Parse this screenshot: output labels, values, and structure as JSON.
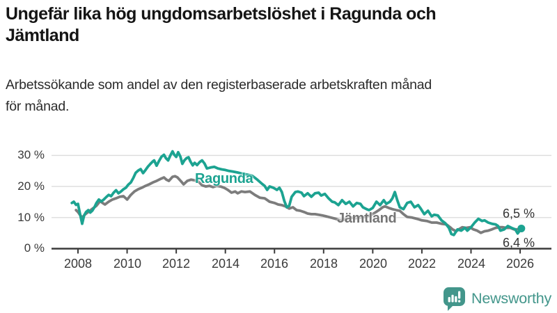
{
  "header": {
    "title_lines": [
      "Ungefär lika hög ungdomsarbetslöshet i Ragunda och",
      "Jämtland"
    ],
    "subtitle_lines": [
      "Arbetssökande som andel av den registerbaserade arbetskraften månad",
      "för månad."
    ]
  },
  "chart_data": {
    "type": "line",
    "title": "Ungefär lika hög ungdomsarbetslöshet i Ragunda och Jämtland",
    "subtitle": "Arbetssökande som andel av den registerbaserade arbetskraften månad för månad.",
    "unit": "%",
    "grid": true,
    "legend_position": "inline-labels",
    "x_axis": {
      "ticks": [
        "2008",
        "2010",
        "2012",
        "2014",
        "2016",
        "2018",
        "2020",
        "2022",
        "2024",
        "2026"
      ],
      "range": [
        2007.7,
        2026.3
      ]
    },
    "y_axis": {
      "ticks_top_down": [
        "30 %",
        "20 %",
        "10 %",
        "0 %"
      ],
      "tick_values": [
        30,
        20,
        10,
        0
      ],
      "range": [
        0,
        32
      ]
    },
    "series": [
      {
        "name": "Ragunda",
        "color": "#1CA391",
        "end_label": "6,5 %",
        "end_value": 6.5,
        "points": [
          [
            2007.75,
            14.7
          ],
          [
            2007.83,
            15.1
          ],
          [
            2007.92,
            14.1
          ],
          [
            2008.0,
            14.4
          ],
          [
            2008.08,
            11.3
          ],
          [
            2008.17,
            8.0
          ],
          [
            2008.25,
            10.7
          ],
          [
            2008.33,
            11.8
          ],
          [
            2008.42,
            12.4
          ],
          [
            2008.5,
            11.6
          ],
          [
            2008.58,
            12.2
          ],
          [
            2008.67,
            13.3
          ],
          [
            2008.75,
            14.7
          ],
          [
            2008.85,
            15.8
          ],
          [
            2008.95,
            15.2
          ],
          [
            2009.05,
            15.8
          ],
          [
            2009.15,
            16.6
          ],
          [
            2009.25,
            17.3
          ],
          [
            2009.35,
            16.9
          ],
          [
            2009.45,
            18.0
          ],
          [
            2009.55,
            18.8
          ],
          [
            2009.65,
            17.8
          ],
          [
            2009.75,
            18.4
          ],
          [
            2009.85,
            19.1
          ],
          [
            2009.95,
            19.6
          ],
          [
            2010.05,
            20.6
          ],
          [
            2010.15,
            21.3
          ],
          [
            2010.25,
            22.7
          ],
          [
            2010.35,
            24.4
          ],
          [
            2010.45,
            25.1
          ],
          [
            2010.55,
            25.6
          ],
          [
            2010.65,
            24.3
          ],
          [
            2010.75,
            25.3
          ],
          [
            2010.85,
            26.4
          ],
          [
            2010.95,
            27.3
          ],
          [
            2011.05,
            28.1
          ],
          [
            2011.1,
            28.4
          ],
          [
            2011.2,
            26.7
          ],
          [
            2011.3,
            28.2
          ],
          [
            2011.4,
            29.6
          ],
          [
            2011.5,
            30.2
          ],
          [
            2011.58,
            29.1
          ],
          [
            2011.67,
            28.4
          ],
          [
            2011.75,
            29.8
          ],
          [
            2011.85,
            31.3
          ],
          [
            2011.92,
            30.2
          ],
          [
            2012.0,
            29.5
          ],
          [
            2012.08,
            31.0
          ],
          [
            2012.17,
            29.6
          ],
          [
            2012.25,
            27.3
          ],
          [
            2012.33,
            28.4
          ],
          [
            2012.42,
            29.1
          ],
          [
            2012.5,
            29.4
          ],
          [
            2012.58,
            28.0
          ],
          [
            2012.67,
            26.8
          ],
          [
            2012.75,
            27.6
          ],
          [
            2012.85,
            26.9
          ],
          [
            2012.95,
            27.8
          ],
          [
            2013.05,
            28.4
          ],
          [
            2013.15,
            27.4
          ],
          [
            2013.25,
            25.8
          ],
          [
            2013.4,
            26.1
          ],
          [
            2013.55,
            26.3
          ],
          [
            2013.7,
            25.8
          ],
          [
            2013.85,
            25.5
          ],
          [
            2014.0,
            25.3
          ],
          [
            2014.15,
            25.0
          ],
          [
            2014.3,
            24.8
          ],
          [
            2014.5,
            24.5
          ],
          [
            2014.7,
            24.1
          ],
          [
            2014.9,
            23.8
          ],
          [
            2015.1,
            23.4
          ],
          [
            2015.3,
            22.2
          ],
          [
            2015.5,
            20.8
          ],
          [
            2015.6,
            20.2
          ],
          [
            2015.7,
            18.9
          ],
          [
            2015.8,
            20.0
          ],
          [
            2015.95,
            19.6
          ],
          [
            2016.1,
            18.9
          ],
          [
            2016.2,
            19.6
          ],
          [
            2016.3,
            18.2
          ],
          [
            2016.4,
            15.3
          ],
          [
            2016.5,
            13.3
          ],
          [
            2016.6,
            13.8
          ],
          [
            2016.7,
            16.7
          ],
          [
            2016.85,
            18.2
          ],
          [
            2016.95,
            18.4
          ],
          [
            2017.1,
            18.0
          ],
          [
            2017.2,
            16.9
          ],
          [
            2017.35,
            17.8
          ],
          [
            2017.5,
            16.7
          ],
          [
            2017.65,
            17.8
          ],
          [
            2017.8,
            18.0
          ],
          [
            2017.9,
            17.1
          ],
          [
            2018.05,
            17.6
          ],
          [
            2018.2,
            16.2
          ],
          [
            2018.35,
            15.1
          ],
          [
            2018.45,
            14.9
          ],
          [
            2018.6,
            14.0
          ],
          [
            2018.75,
            15.6
          ],
          [
            2018.9,
            14.4
          ],
          [
            2019.05,
            15.1
          ],
          [
            2019.2,
            13.6
          ],
          [
            2019.35,
            14.7
          ],
          [
            2019.5,
            14.4
          ],
          [
            2019.6,
            13.3
          ],
          [
            2019.75,
            12.7
          ],
          [
            2019.85,
            12.4
          ],
          [
            2020.0,
            13.1
          ],
          [
            2020.15,
            15.1
          ],
          [
            2020.3,
            14.0
          ],
          [
            2020.45,
            15.6
          ],
          [
            2020.55,
            14.4
          ],
          [
            2020.7,
            15.1
          ],
          [
            2020.8,
            16.2
          ],
          [
            2020.9,
            18.2
          ],
          [
            2021.0,
            15.6
          ],
          [
            2021.1,
            13.3
          ],
          [
            2021.25,
            12.7
          ],
          [
            2021.4,
            14.7
          ],
          [
            2021.55,
            15.1
          ],
          [
            2021.7,
            13.3
          ],
          [
            2021.85,
            14.0
          ],
          [
            2021.95,
            12.9
          ],
          [
            2022.1,
            11.1
          ],
          [
            2022.25,
            12.2
          ],
          [
            2022.4,
            10.4
          ],
          [
            2022.5,
            10.9
          ],
          [
            2022.65,
            10.7
          ],
          [
            2022.8,
            9.1
          ],
          [
            2022.95,
            8.2
          ],
          [
            2023.1,
            6.7
          ],
          [
            2023.2,
            4.7
          ],
          [
            2023.3,
            4.4
          ],
          [
            2023.45,
            6.2
          ],
          [
            2023.6,
            5.8
          ],
          [
            2023.75,
            6.7
          ],
          [
            2023.85,
            5.8
          ],
          [
            2024.0,
            6.9
          ],
          [
            2024.15,
            8.4
          ],
          [
            2024.3,
            9.6
          ],
          [
            2024.45,
            8.9
          ],
          [
            2024.55,
            9.1
          ],
          [
            2024.7,
            8.4
          ],
          [
            2024.85,
            8.0
          ],
          [
            2025.0,
            7.8
          ],
          [
            2025.1,
            7.3
          ],
          [
            2025.2,
            5.8
          ],
          [
            2025.35,
            6.2
          ],
          [
            2025.5,
            7.3
          ],
          [
            2025.65,
            6.7
          ],
          [
            2025.8,
            6.2
          ],
          [
            2025.9,
            4.9
          ],
          [
            2026.05,
            6.5
          ]
        ]
      },
      {
        "name": "Jämtland",
        "color": "#7C7C7C",
        "end_label": "6,4 %",
        "end_value": 6.4,
        "points": [
          [
            2007.92,
            12.4
          ],
          [
            2008.0,
            11.8
          ],
          [
            2008.08,
            10.9
          ],
          [
            2008.17,
            10.0
          ],
          [
            2008.3,
            11.1
          ],
          [
            2008.45,
            12.0
          ],
          [
            2008.6,
            12.9
          ],
          [
            2008.75,
            13.8
          ],
          [
            2008.9,
            15.3
          ],
          [
            2009.0,
            14.7
          ],
          [
            2009.1,
            14.2
          ],
          [
            2009.25,
            15.1
          ],
          [
            2009.4,
            15.8
          ],
          [
            2009.55,
            16.2
          ],
          [
            2009.7,
            16.7
          ],
          [
            2009.85,
            16.9
          ],
          [
            2010.0,
            15.8
          ],
          [
            2010.15,
            17.3
          ],
          [
            2010.3,
            18.4
          ],
          [
            2010.45,
            19.1
          ],
          [
            2010.6,
            19.6
          ],
          [
            2010.75,
            20.2
          ],
          [
            2010.9,
            20.7
          ],
          [
            2011.05,
            21.3
          ],
          [
            2011.2,
            21.8
          ],
          [
            2011.35,
            22.4
          ],
          [
            2011.5,
            22.9
          ],
          [
            2011.6,
            22.2
          ],
          [
            2011.7,
            21.8
          ],
          [
            2011.85,
            23.1
          ],
          [
            2011.95,
            23.3
          ],
          [
            2012.05,
            22.9
          ],
          [
            2012.2,
            21.6
          ],
          [
            2012.3,
            20.7
          ],
          [
            2012.45,
            21.8
          ],
          [
            2012.6,
            22.2
          ],
          [
            2012.75,
            22.0
          ],
          [
            2012.9,
            21.6
          ],
          [
            2013.05,
            20.4
          ],
          [
            2013.2,
            20.0
          ],
          [
            2013.35,
            20.2
          ],
          [
            2013.5,
            19.8
          ],
          [
            2013.65,
            20.2
          ],
          [
            2013.8,
            20.0
          ],
          [
            2013.95,
            19.6
          ],
          [
            2014.1,
            18.9
          ],
          [
            2014.25,
            18.0
          ],
          [
            2014.4,
            18.4
          ],
          [
            2014.5,
            17.8
          ],
          [
            2014.65,
            18.4
          ],
          [
            2014.8,
            18.2
          ],
          [
            2015.0,
            18.4
          ],
          [
            2015.2,
            17.3
          ],
          [
            2015.4,
            16.4
          ],
          [
            2015.6,
            16.2
          ],
          [
            2015.8,
            15.1
          ],
          [
            2016.0,
            14.7
          ],
          [
            2016.15,
            14.2
          ],
          [
            2016.3,
            14.0
          ],
          [
            2016.45,
            13.6
          ],
          [
            2016.6,
            12.9
          ],
          [
            2016.75,
            13.3
          ],
          [
            2016.9,
            12.4
          ],
          [
            2017.05,
            12.2
          ],
          [
            2017.2,
            11.8
          ],
          [
            2017.35,
            11.3
          ],
          [
            2017.5,
            11.1
          ],
          [
            2017.65,
            11.1
          ],
          [
            2017.8,
            10.9
          ],
          [
            2017.95,
            10.7
          ],
          [
            2018.1,
            10.4
          ],
          [
            2018.3,
            10.0
          ],
          [
            2018.5,
            9.6
          ],
          [
            2018.65,
            9.1
          ],
          [
            2018.8,
            9.3
          ],
          [
            2018.95,
            9.6
          ],
          [
            2019.1,
            10.0
          ],
          [
            2019.3,
            9.8
          ],
          [
            2019.5,
            10.0
          ],
          [
            2019.7,
            10.2
          ],
          [
            2019.9,
            10.7
          ],
          [
            2020.1,
            11.6
          ],
          [
            2020.25,
            12.4
          ],
          [
            2020.4,
            13.3
          ],
          [
            2020.5,
            13.6
          ],
          [
            2020.65,
            13.1
          ],
          [
            2020.8,
            12.7
          ],
          [
            2020.95,
            12.4
          ],
          [
            2021.1,
            12.2
          ],
          [
            2021.25,
            11.1
          ],
          [
            2021.4,
            10.2
          ],
          [
            2021.6,
            10.0
          ],
          [
            2021.8,
            9.6
          ],
          [
            2022.0,
            9.1
          ],
          [
            2022.2,
            8.9
          ],
          [
            2022.4,
            8.4
          ],
          [
            2022.6,
            8.4
          ],
          [
            2022.8,
            8.0
          ],
          [
            2023.0,
            7.8
          ],
          [
            2023.15,
            6.9
          ],
          [
            2023.25,
            6.2
          ],
          [
            2023.4,
            5.6
          ],
          [
            2023.5,
            6.2
          ],
          [
            2023.65,
            6.9
          ],
          [
            2023.8,
            6.7
          ],
          [
            2023.95,
            6.9
          ],
          [
            2024.1,
            6.2
          ],
          [
            2024.25,
            5.8
          ],
          [
            2024.4,
            5.1
          ],
          [
            2024.55,
            5.6
          ],
          [
            2024.7,
            5.8
          ],
          [
            2024.85,
            6.2
          ],
          [
            2025.0,
            6.7
          ],
          [
            2025.15,
            6.9
          ],
          [
            2025.3,
            6.9
          ],
          [
            2025.45,
            6.7
          ],
          [
            2025.6,
            6.7
          ],
          [
            2025.75,
            6.2
          ],
          [
            2025.9,
            6.2
          ],
          [
            2026.05,
            6.4
          ]
        ]
      }
    ]
  },
  "branding": {
    "logo_text": "Newsworthy",
    "logo_color": "#43968B"
  }
}
